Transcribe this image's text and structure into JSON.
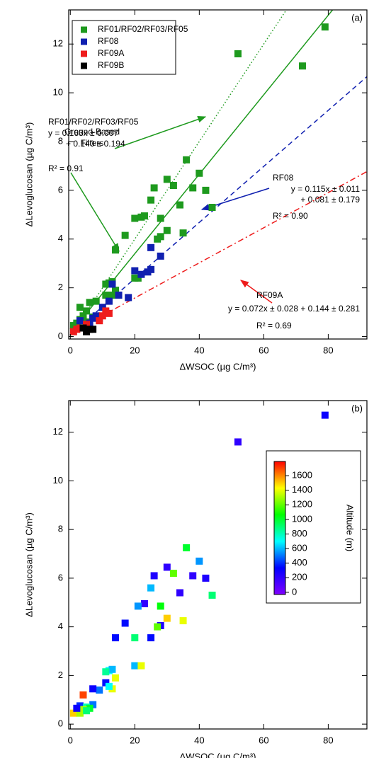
{
  "chart_data": [
    {
      "type": "scatter",
      "panel_label": "(a)",
      "xlabel": "ΔWSOC (µg C/m³)",
      "ylabel": "ΔLevoglucosan (µg C/m³)",
      "xlim": [
        -0.5,
        92
      ],
      "ylim": [
        -0.1,
        13.4
      ],
      "xticks": [
        0,
        20,
        40,
        60,
        80
      ],
      "yticks": [
        0,
        2,
        4,
        6,
        8,
        10,
        12
      ],
      "legend": "upper left",
      "series": [
        {
          "name": "RF01/RF02/RF03/RF05",
          "color": "#1e9a1e",
          "x": [
            79,
            52,
            72,
            36,
            40,
            30,
            26,
            32,
            38,
            42,
            25,
            34,
            44,
            22,
            20,
            28,
            23,
            17,
            30,
            35,
            27,
            28,
            14,
            20,
            21,
            12,
            13,
            11,
            14,
            11,
            8,
            6,
            3,
            5,
            4,
            3,
            2,
            1,
            2,
            5,
            4,
            7,
            13,
            12
          ],
          "values": [
            12.7,
            11.6,
            11.1,
            7.25,
            6.7,
            6.45,
            6.1,
            6.2,
            6.1,
            6.0,
            5.6,
            5.4,
            5.3,
            4.9,
            4.85,
            4.85,
            4.95,
            4.15,
            4.35,
            4.25,
            4.0,
            4.1,
            3.55,
            2.4,
            2.4,
            2.2,
            2.25,
            2.15,
            1.9,
            1.7,
            1.45,
            1.4,
            1.2,
            1.05,
            0.85,
            0.7,
            0.55,
            0.45,
            0.5,
            0.6,
            0.65,
            0.8,
            1.7,
            1.5
          ]
        },
        {
          "name": "RF08",
          "color": "#1020b0",
          "x": [
            25,
            28,
            20,
            25,
            22,
            24,
            13,
            18,
            12,
            10,
            15,
            8,
            7,
            3,
            6,
            9
          ],
          "values": [
            3.65,
            3.3,
            2.7,
            2.75,
            2.55,
            2.65,
            2.15,
            1.6,
            1.45,
            1.2,
            1.7,
            0.85,
            0.75,
            0.65,
            0.55,
            0.75
          ]
        },
        {
          "name": "RF09A",
          "color": "#ee1c1c",
          "x": [
            11,
            12,
            10,
            9,
            3,
            2,
            5,
            1
          ],
          "values": [
            1.05,
            0.95,
            0.85,
            0.65,
            0.35,
            0.3,
            0.5,
            0.2
          ]
        },
        {
          "name": "RF09B",
          "color": "#000000",
          "x": [
            5,
            6,
            4,
            7,
            5
          ],
          "values": [
            0.25,
            0.3,
            0.35,
            0.3,
            0.2
          ]
        }
      ],
      "fits": [
        {
          "slope": 0.2,
          "intercept": 0,
          "color": "#1e9a1e",
          "style": "dotted",
          "label_lines": [
            "Ground-Based",
            "Filters"
          ]
        },
        {
          "slope": 0.163,
          "intercept": 0.14,
          "color": "#1e9a1e",
          "style": "solid",
          "label_lines": [
            "RF01/RF02/RF03/RF05",
            "y = 0.163x ± 0.007",
            "+ 0.140 ± 0.194",
            "R² = 0.91"
          ]
        },
        {
          "slope": 0.115,
          "intercept": 0.081,
          "color": "#1020b0",
          "style": "dashed",
          "label_lines": [
            "RF08",
            "y = 0.115x ± 0.011",
            "+ 0.081 ± 0.179",
            "R² = 0.90"
          ]
        },
        {
          "slope": 0.072,
          "intercept": 0.144,
          "color": "#ee1c1c",
          "style": "dashdot",
          "label_lines": [
            "RF09A",
            "y = 0.072x ± 0.028 + 0.144 ± 0.281",
            "R² = 0.69"
          ]
        }
      ]
    },
    {
      "type": "scatter",
      "panel_label": "(b)",
      "xlabel": "ΔWSOC (µg C/m³)",
      "ylabel": "ΔLevoglucosan (µg C/m³)",
      "xlim": [
        -0.5,
        92
      ],
      "ylim": [
        -0.2,
        13.3
      ],
      "xticks": [
        0,
        20,
        40,
        60,
        80
      ],
      "yticks": [
        0,
        2,
        4,
        6,
        8,
        10,
        12
      ],
      "x": [
        79,
        52,
        72,
        36,
        40,
        30,
        26,
        32,
        38,
        42,
        25,
        34,
        44,
        23,
        21,
        28,
        17,
        30,
        35,
        28,
        27,
        14,
        25,
        20,
        20,
        22,
        12,
        13,
        11,
        14,
        11,
        13,
        12,
        9,
        7,
        4,
        7,
        3,
        5,
        6,
        4,
        2,
        1,
        3,
        5,
        2
      ],
      "values": [
        12.7,
        11.6,
        11.1,
        7.25,
        6.7,
        6.45,
        6.1,
        6.2,
        6.1,
        6.0,
        5.6,
        5.4,
        5.3,
        4.95,
        4.85,
        4.85,
        4.15,
        4.35,
        4.25,
        4.05,
        4.0,
        3.55,
        3.55,
        3.55,
        2.4,
        2.4,
        2.2,
        2.25,
        2.15,
        1.9,
        1.7,
        1.45,
        1.55,
        1.4,
        1.45,
        1.2,
        0.8,
        0.75,
        0.7,
        0.65,
        0.6,
        0.5,
        0.45,
        0.45,
        0.55,
        0.65
      ],
      "altitude": [
        300,
        200,
        300,
        1000,
        550,
        200,
        250,
        1200,
        200,
        250,
        600,
        200,
        900,
        200,
        550,
        1050,
        350,
        1500,
        1400,
        250,
        1200,
        350,
        350,
        900,
        600,
        1400,
        700,
        600,
        850,
        1400,
        350,
        1400,
        700,
        500,
        300,
        1700,
        500,
        400,
        800,
        1000,
        1300,
        1200,
        1500,
        1300,
        900,
        300
      ],
      "colorbar": {
        "label": "Altitude (m)",
        "clim": [
          -30,
          1795
        ],
        "ticks": [
          0,
          200,
          400,
          600,
          800,
          1000,
          1200,
          1400,
          1600
        ],
        "colormap": [
          "#8000ff",
          "#0000ff",
          "#00ffff",
          "#00ff00",
          "#ffff00",
          "#ff0000"
        ]
      }
    }
  ]
}
